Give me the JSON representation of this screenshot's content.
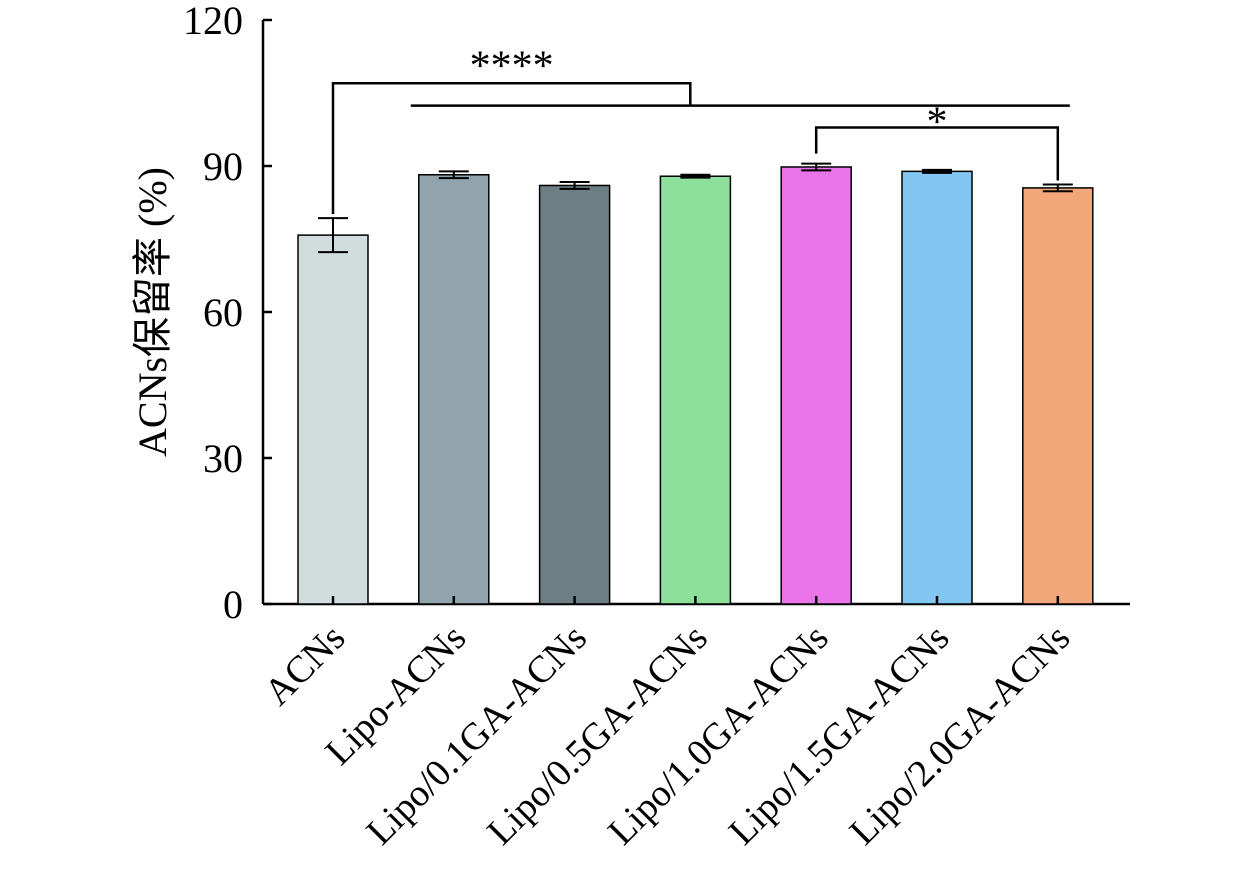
{
  "chart_data": {
    "type": "bar",
    "categories": [
      "ACNs",
      "Lipo-ACNs",
      "Lipo/0.1GA-ACNs",
      "Lipo/0.5GA-ACNs",
      "Lipo/1.0GA-ACNs",
      "Lipo/1.5GA-ACNs",
      "Lipo/2.0GA-ACNs"
    ],
    "values": [
      75.8,
      88.2,
      86.0,
      87.9,
      89.8,
      88.9,
      85.5
    ],
    "errors": [
      3.5,
      0.7,
      0.7,
      0.3,
      0.7,
      0.3,
      0.7
    ],
    "colors": [
      "#d1dcdd",
      "#91a4ad",
      "#6d7f85",
      "#8fdf9c",
      "#ea74ea",
      "#82c6f2",
      "#f2a679"
    ],
    "ylabel": "ACNs保留率 (%)",
    "xlabel": "",
    "title": "",
    "ylim": [
      0,
      120
    ],
    "yticks": [
      0,
      30,
      60,
      90,
      120
    ],
    "grid": false,
    "significance": [
      {
        "label": "****",
        "from": 0,
        "to_span": [
          1,
          6
        ]
      },
      {
        "label": "*",
        "from": 4,
        "to": 6
      }
    ]
  }
}
